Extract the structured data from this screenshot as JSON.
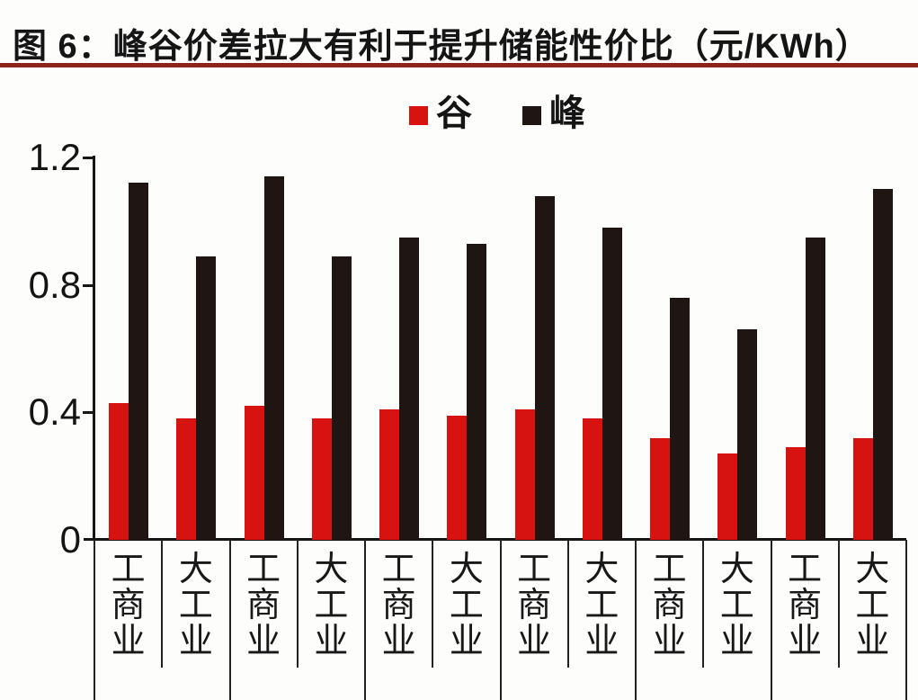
{
  "figure": {
    "title": "图 6：峰谷价差拉大有利于提升储能性价比（元/KWh）"
  },
  "colors": {
    "valley_red": "#d61310",
    "peak_black": "#1f1614",
    "title_rule": "#8e231c",
    "axis": "#161616"
  },
  "y_axis": {
    "tick_labels": [
      "1.2",
      "0.8",
      "0.4",
      "0"
    ]
  },
  "chart_data": {
    "type": "bar",
    "title": "峰谷价差拉大有利于提升储能性价比（元/KWh）",
    "categories": [
      "工商业",
      "大工业",
      "工商业",
      "大工业",
      "工商业",
      "大工业",
      "工商业",
      "大工业",
      "工商业",
      "大工业",
      "工商业",
      "大工业"
    ],
    "series": [
      {
        "name": "谷",
        "color": "#d61310",
        "values": [
          0.43,
          0.38,
          0.42,
          0.38,
          0.41,
          0.39,
          0.41,
          0.38,
          0.32,
          0.27,
          0.29,
          0.32
        ]
      },
      {
        "name": "峰",
        "color": "#1f1614",
        "values": [
          1.12,
          0.89,
          1.14,
          0.89,
          0.95,
          0.93,
          1.08,
          0.98,
          0.76,
          0.66,
          0.95,
          1.1
        ]
      }
    ],
    "ylim": [
      0,
      1.2
    ],
    "yticks": [
      1.2,
      0.8,
      0.4,
      0
    ],
    "ytick_labels": [
      "1.2",
      "0.8",
      "0.4",
      "0"
    ],
    "grid": false,
    "legend_position": "top-center",
    "bar_grouping": "pairs of categories share a second-tier group cell (6 groups of 2); second-tier labels are cut off at the bottom edge"
  }
}
